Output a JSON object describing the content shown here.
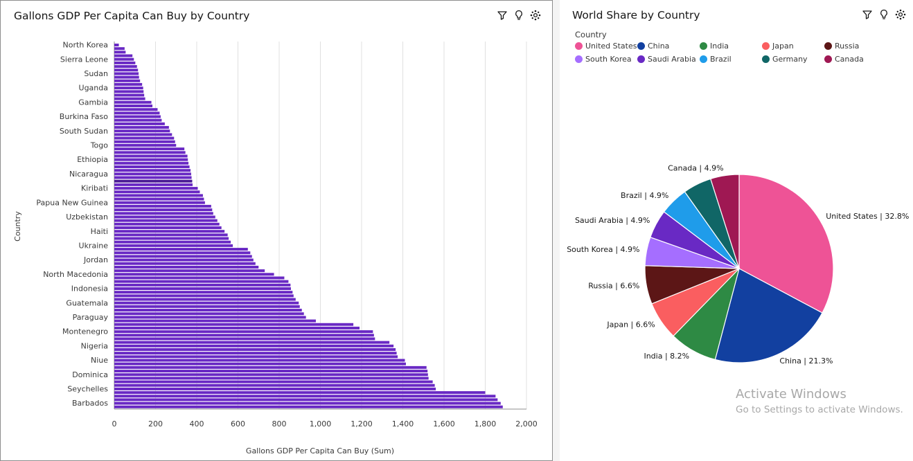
{
  "left_panel": {
    "title": "Gallons GDP Per Capita Can Buy by Country",
    "toolbar": [
      "filter-icon",
      "lightbulb-icon",
      "settings-icon"
    ]
  },
  "right_panel": {
    "title": "World Share by Country",
    "toolbar": [
      "filter-icon",
      "lightbulb-icon",
      "settings-icon"
    ],
    "legend_title": "Country"
  },
  "watermark": {
    "line1": "Activate Windows",
    "line2": "Go to Settings to activate Windows."
  },
  "colors": {
    "bar": "#6929c4",
    "bar_highlight": "#4b1c95"
  },
  "chart_data": [
    {
      "type": "bar",
      "orientation": "horizontal",
      "title": "Gallons GDP Per Capita Can Buy by Country",
      "xlabel": "Gallons GDP Per Capita Can Buy (Sum)",
      "ylabel": "Country",
      "xlim": [
        0,
        2000
      ],
      "xticks": [
        "0",
        "200",
        "400",
        "600",
        "800",
        "1,000",
        "1,200",
        "1,400",
        "1,600",
        "1,800",
        "2,000"
      ],
      "grid": true,
      "shown_labels": [
        "North Korea",
        "Sierra Leone",
        "Sudan",
        "Uganda",
        "Gambia",
        "Burkina Faso",
        "South Sudan",
        "Togo",
        "Ethiopia",
        "Nicaragua",
        "Kiribati",
        "Papua New Guinea",
        "Uzbekistan",
        "Haiti",
        "Ukraine",
        "Jordan",
        "North Macedonia",
        "Indonesia",
        "Guatemala",
        "Paraguay",
        "Montenegro",
        "Nigeria",
        "Niue",
        "Dominica",
        "Seychelles",
        "Barbados"
      ],
      "label_every": 4,
      "highlight_index": 38,
      "values": [
        22,
        50,
        55,
        88,
        95,
        102,
        110,
        115,
        118,
        120,
        125,
        135,
        140,
        142,
        145,
        150,
        180,
        185,
        210,
        220,
        225,
        230,
        245,
        265,
        270,
        280,
        290,
        295,
        300,
        340,
        345,
        355,
        357,
        360,
        365,
        370,
        373,
        375,
        378,
        380,
        405,
        415,
        430,
        435,
        440,
        470,
        475,
        480,
        490,
        500,
        510,
        520,
        535,
        550,
        555,
        565,
        575,
        648,
        660,
        668,
        675,
        685,
        700,
        730,
        775,
        825,
        845,
        855,
        857,
        865,
        870,
        880,
        895,
        900,
        910,
        920,
        930,
        978,
        1160,
        1190,
        1255,
        1260,
        1265,
        1335,
        1355,
        1365,
        1370,
        1375,
        1410,
        1415,
        1515,
        1520,
        1522,
        1525,
        1545,
        1555,
        1560,
        1800,
        1850,
        1860,
        1875,
        1885
      ]
    },
    {
      "type": "pie",
      "title": "World Share by Country",
      "legend_title": "Country",
      "legend_position": "top-left",
      "slices": [
        {
          "name": "United States",
          "value": 32.8,
          "label": "United States | 32.8%",
          "color": "#ee5396"
        },
        {
          "name": "China",
          "value": 21.3,
          "label": "China | 21.3%",
          "color": "#1240a0"
        },
        {
          "name": "India",
          "value": 8.2,
          "label": "India | 8.2%",
          "color": "#2e8a44"
        },
        {
          "name": "Japan",
          "value": 6.6,
          "label": "Japan | 6.6%",
          "color": "#fa5e60"
        },
        {
          "name": "Russia",
          "value": 6.6,
          "label": "Russia | 6.6%",
          "color": "#5c1616"
        },
        {
          "name": "South Korea",
          "value": 4.9,
          "label": "South Korea | 4.9%",
          "color": "#a56eff"
        },
        {
          "name": "Saudi Arabia",
          "value": 4.9,
          "label": "Saudi Arabia | 4.9%",
          "color": "#6929c4"
        },
        {
          "name": "Brazil",
          "value": 4.9,
          "label": "Brazil | 4.9%",
          "color": "#1f9cea"
        },
        {
          "name": "Germany",
          "value": 4.9,
          "label": "",
          "color": "#106666"
        },
        {
          "name": "Canada",
          "value": 4.9,
          "label": "Canada | 4.9%",
          "color": "#9f1853"
        }
      ]
    }
  ]
}
